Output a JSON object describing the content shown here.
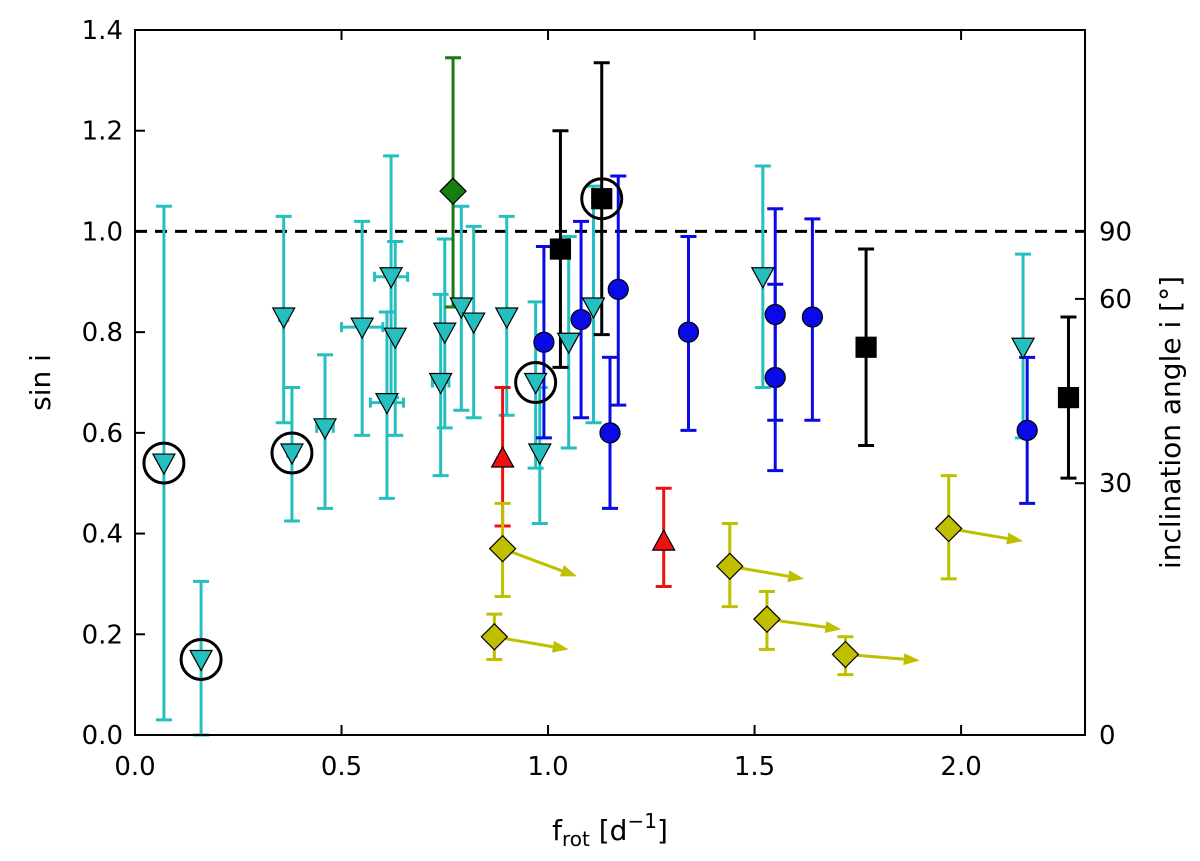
{
  "chart_data": {
    "type": "scatter",
    "title": "",
    "xlabel_main": "f",
    "xlabel_sub": "rot",
    "xlabel_tail": " [d",
    "xlabel_sup": "−1",
    "xlabel_end": "]",
    "ylabel": "sin i",
    "y2label": "inclination angle i [°]",
    "xlim": [
      0.0,
      2.3
    ],
    "ylim": [
      0.0,
      1.4
    ],
    "xticks": [
      "0.0",
      "0.5",
      "1.0",
      "1.5",
      "2.0"
    ],
    "yticks": [
      "0.0",
      "0.2",
      "0.4",
      "0.6",
      "0.8",
      "1.0",
      "1.2",
      "1.4"
    ],
    "y2ticks": [
      {
        "angle": 0,
        "label": "0"
      },
      {
        "angle": 30,
        "label": "30"
      },
      {
        "angle": 60,
        "label": "60"
      },
      {
        "angle": 90,
        "label": "90"
      }
    ],
    "reference_line": {
      "y": 1.0,
      "style": "dashed"
    },
    "colors": {
      "cyan": "#26bfbf",
      "blue": "#0a0ae6",
      "black": "#000000",
      "green": "#177d10",
      "red": "#ee1111",
      "olive": "#bfbf00"
    },
    "series": [
      {
        "name": "cyan-triangles",
        "marker": "triangle-down",
        "color": "#26bfbf",
        "points": [
          {
            "x": 0.07,
            "y": 0.54,
            "ylo": 0.03,
            "yhi": 1.05
          },
          {
            "x": 0.16,
            "y": 0.15,
            "ylo": 0.0,
            "yhi": 0.305
          },
          {
            "x": 0.36,
            "y": 0.83,
            "ylo": 0.62,
            "yhi": 1.03,
            "xerr": 0.01
          },
          {
            "x": 0.38,
            "y": 0.56,
            "ylo": 0.425,
            "yhi": 0.69,
            "xerr": 0.01
          },
          {
            "x": 0.46,
            "y": 0.61,
            "ylo": 0.45,
            "yhi": 0.755,
            "xerr": 0.02
          },
          {
            "x": 0.55,
            "y": 0.81,
            "ylo": 0.595,
            "yhi": 1.02,
            "xerr": 0.05
          },
          {
            "x": 0.61,
            "y": 0.66,
            "ylo": 0.47,
            "yhi": 0.84,
            "xerr": 0.04
          },
          {
            "x": 0.62,
            "y": 0.91,
            "ylo": 0.67,
            "yhi": 1.15,
            "xerr": 0.04
          },
          {
            "x": 0.63,
            "y": 0.79,
            "ylo": 0.595,
            "yhi": 0.98
          },
          {
            "x": 0.74,
            "y": 0.7,
            "ylo": 0.515,
            "yhi": 0.875,
            "xerr": 0.02
          },
          {
            "x": 0.75,
            "y": 0.8,
            "ylo": 0.61,
            "yhi": 0.985
          },
          {
            "x": 0.79,
            "y": 0.85,
            "ylo": 0.645,
            "yhi": 1.05
          },
          {
            "x": 0.82,
            "y": 0.82,
            "ylo": 0.63,
            "yhi": 1.01
          },
          {
            "x": 0.9,
            "y": 0.83,
            "ylo": 0.635,
            "yhi": 1.03
          },
          {
            "x": 0.97,
            "y": 0.7,
            "ylo": 0.53,
            "yhi": 0.86
          },
          {
            "x": 0.98,
            "y": 0.56,
            "ylo": 0.42,
            "yhi": 0.69
          },
          {
            "x": 1.05,
            "y": 0.78,
            "ylo": 0.57,
            "yhi": 0.99
          },
          {
            "x": 1.11,
            "y": 0.85,
            "ylo": 0.62,
            "yhi": 1.09
          },
          {
            "x": 1.52,
            "y": 0.91,
            "ylo": 0.69,
            "yhi": 1.13
          },
          {
            "x": 2.15,
            "y": 0.77,
            "ylo": 0.59,
            "yhi": 0.955
          }
        ]
      },
      {
        "name": "blue-circles",
        "marker": "circle",
        "color": "#0a0ae6",
        "points": [
          {
            "x": 0.99,
            "y": 0.78,
            "ylo": 0.59,
            "yhi": 0.97
          },
          {
            "x": 1.08,
            "y": 0.825,
            "ylo": 0.63,
            "yhi": 1.02
          },
          {
            "x": 1.15,
            "y": 0.6,
            "ylo": 0.45,
            "yhi": 0.75
          },
          {
            "x": 1.17,
            "y": 0.885,
            "ylo": 0.655,
            "yhi": 1.11
          },
          {
            "x": 1.34,
            "y": 0.8,
            "ylo": 0.605,
            "yhi": 0.99
          },
          {
            "x": 1.55,
            "y": 0.835,
            "ylo": 0.625,
            "yhi": 1.045
          },
          {
            "x": 1.55,
            "y": 0.71,
            "ylo": 0.525,
            "yhi": 0.895
          },
          {
            "x": 1.64,
            "y": 0.83,
            "ylo": 0.625,
            "yhi": 1.025
          },
          {
            "x": 2.16,
            "y": 0.605,
            "ylo": 0.46,
            "yhi": 0.75
          }
        ]
      },
      {
        "name": "black-squares",
        "marker": "square",
        "color": "#000000",
        "points": [
          {
            "x": 1.03,
            "y": 0.965,
            "ylo": 0.73,
            "yhi": 1.2
          },
          {
            "x": 1.13,
            "y": 1.065,
            "ylo": 0.795,
            "yhi": 1.335
          },
          {
            "x": 1.77,
            "y": 0.77,
            "ylo": 0.575,
            "yhi": 0.965
          },
          {
            "x": 2.26,
            "y": 0.67,
            "ylo": 0.51,
            "yhi": 0.83
          }
        ]
      },
      {
        "name": "green-diamond",
        "marker": "diamond",
        "color": "#177d10",
        "points": [
          {
            "x": 0.77,
            "y": 1.08,
            "ylo": 0.85,
            "yhi": 1.345
          }
        ]
      },
      {
        "name": "red-triangles",
        "marker": "triangle-up",
        "color": "#ee1111",
        "points": [
          {
            "x": 0.89,
            "y": 0.55,
            "ylo": 0.415,
            "yhi": 0.69
          },
          {
            "x": 1.28,
            "y": 0.385,
            "ylo": 0.295,
            "yhi": 0.49
          }
        ]
      },
      {
        "name": "olive-diamonds",
        "marker": "diamond",
        "color": "#bfbf00",
        "note": "lower limits on frot (arrows to the right)",
        "points": [
          {
            "x": 0.87,
            "y": 0.195,
            "ylo": 0.15,
            "yhi": 0.24,
            "arrow_to_x": 1.05,
            "arrow_to_y": 0.17
          },
          {
            "x": 0.89,
            "y": 0.37,
            "ylo": 0.275,
            "yhi": 0.46,
            "arrow_to_x": 1.07,
            "arrow_to_y": 0.315
          },
          {
            "x": 1.44,
            "y": 0.335,
            "ylo": 0.255,
            "yhi": 0.42,
            "arrow_to_x": 1.62,
            "arrow_to_y": 0.31
          },
          {
            "x": 1.53,
            "y": 0.23,
            "ylo": 0.17,
            "yhi": 0.285,
            "arrow_to_x": 1.71,
            "arrow_to_y": 0.21
          },
          {
            "x": 1.72,
            "y": 0.16,
            "ylo": 0.12,
            "yhi": 0.195,
            "arrow_to_x": 1.9,
            "arrow_to_y": 0.148
          },
          {
            "x": 1.97,
            "y": 0.41,
            "ylo": 0.31,
            "yhi": 0.515,
            "arrow_to_x": 2.15,
            "arrow_to_y": 0.385
          }
        ]
      }
    ],
    "highlighted": [
      {
        "x": 0.07,
        "y": 0.54
      },
      {
        "x": 0.16,
        "y": 0.15
      },
      {
        "x": 0.38,
        "y": 0.56
      },
      {
        "x": 0.97,
        "y": 0.7
      },
      {
        "x": 1.13,
        "y": 1.065
      }
    ]
  }
}
